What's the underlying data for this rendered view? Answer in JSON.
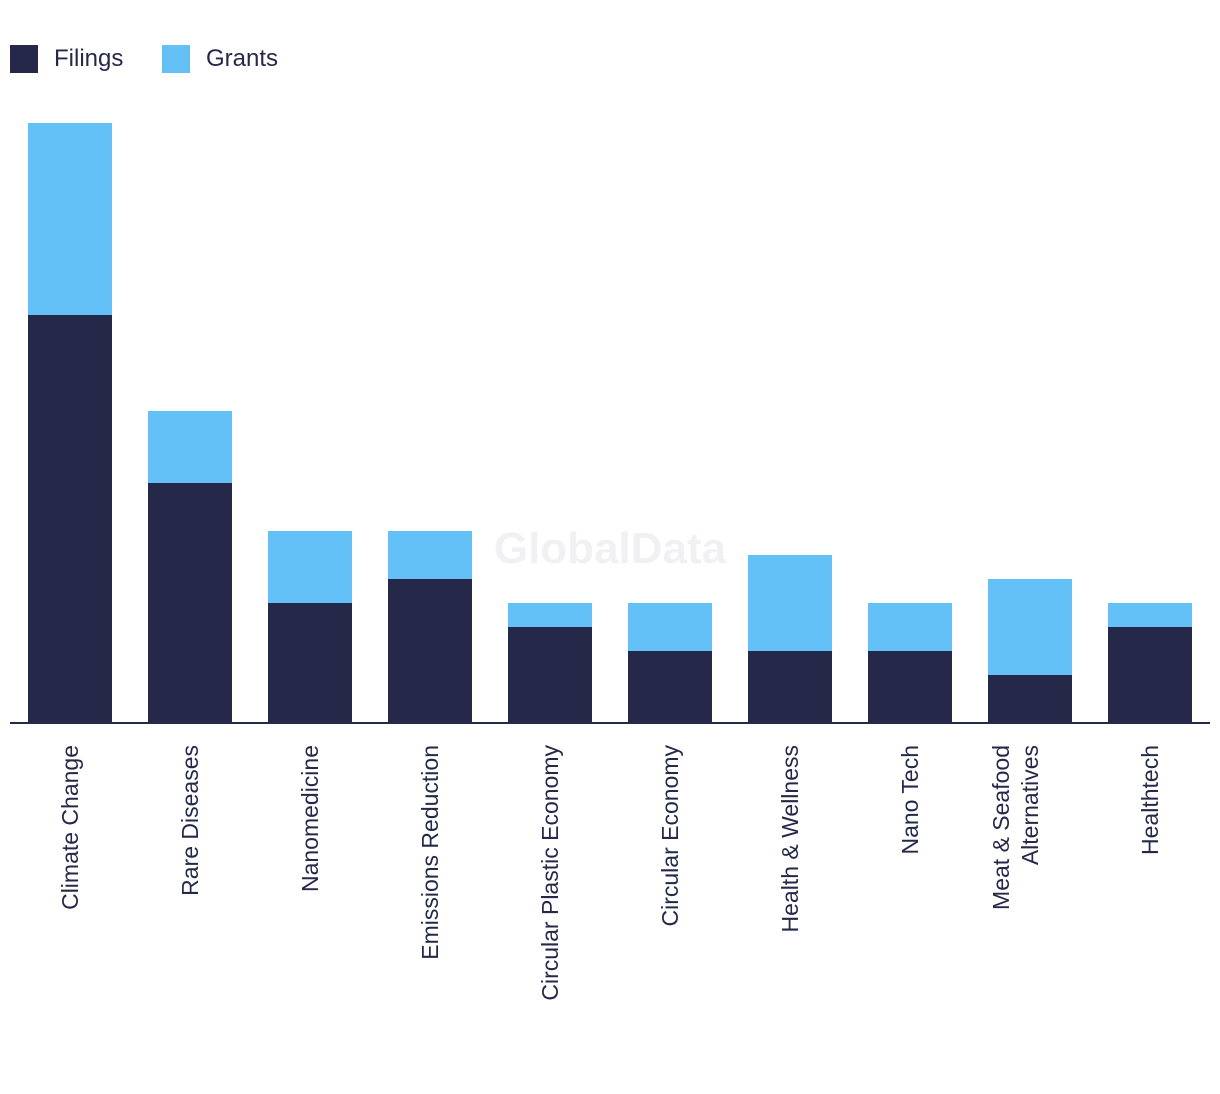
{
  "chart_data": {
    "type": "bar",
    "stacked": true,
    "title": "",
    "xlabel": "",
    "ylabel": "",
    "ylim": [
      0,
      25
    ],
    "grid": false,
    "legend_position": "top-left",
    "categories": [
      [
        "Climate Change"
      ],
      [
        "Rare Diseases"
      ],
      [
        "Nanomedicine"
      ],
      [
        "Emissions Reduction"
      ],
      [
        "Circular Plastic Economy"
      ],
      [
        "Circular Economy"
      ],
      [
        "Health & Wellness"
      ],
      [
        "Nano Tech"
      ],
      [
        "Meat & Seafood",
        "Alternatives"
      ],
      [
        "Healthtech"
      ]
    ],
    "series": [
      {
        "name": "Filings",
        "color": "#26284a",
        "values": [
          17,
          10,
          5,
          6,
          4,
          3,
          3,
          3,
          2,
          4
        ]
      },
      {
        "name": "Grants",
        "color": "#63c1f8",
        "values": [
          8,
          3,
          3,
          2,
          1,
          2,
          4,
          2,
          4,
          1
        ]
      }
    ]
  },
  "watermark": "GlobalData"
}
